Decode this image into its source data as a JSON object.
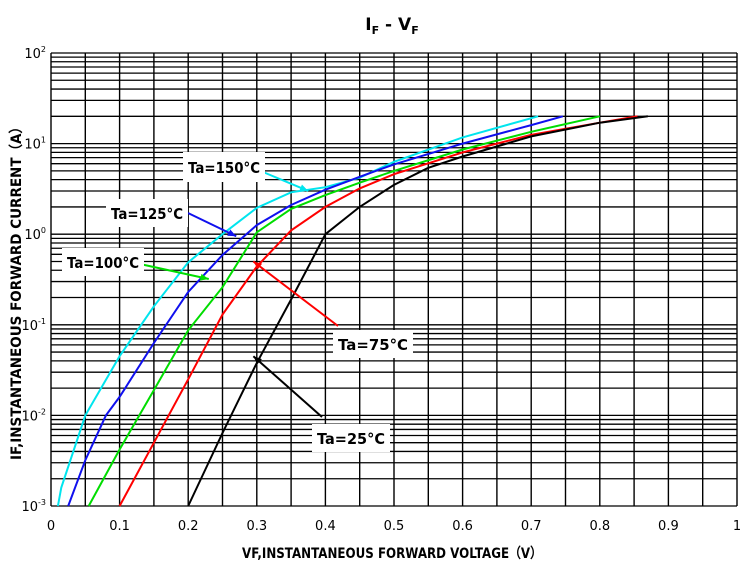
{
  "chart_data": {
    "type": "line",
    "title": {
      "main_i": "I",
      "sub_i": "F",
      "dash": " - ",
      "main_v": "V",
      "sub_v": "F"
    },
    "xlabel": "VF,INSTANTANEOUS FORWARD VOLTAGE（V）",
    "ylabel": "IF,INSTANTANEOUS FORWARD CURRENT（A）",
    "xlim": [
      0,
      1
    ],
    "ylim": [
      0.001,
      100
    ],
    "yscale": "log",
    "grid": true,
    "x_ticks": [
      "0",
      "0.1",
      "0.2",
      "0.3",
      "0.4",
      "0.5",
      "0.6",
      "0.7",
      "0.8",
      "0.9",
      "1"
    ],
    "y_ticks": [
      {
        "base": "10",
        "exp": "-3"
      },
      {
        "base": "10",
        "exp": "-2"
      },
      {
        "base": "10",
        "exp": "-1"
      },
      {
        "base": "10",
        "exp": "0"
      },
      {
        "base": "10",
        "exp": "1"
      },
      {
        "base": "10",
        "exp": "2"
      }
    ],
    "series": [
      {
        "name": "Ta=150°C",
        "color": "#00e5ee",
        "x": [
          0.01,
          0.015,
          0.05,
          0.1,
          0.15,
          0.2,
          0.25,
          0.3,
          0.35,
          0.4,
          0.45,
          0.5,
          0.6,
          0.71
        ],
        "y": [
          0.001,
          0.0016,
          0.01,
          0.045,
          0.16,
          0.49,
          1.0,
          1.95,
          2.9,
          3.3,
          4.2,
          6.3,
          11.7,
          20
        ]
      },
      {
        "name": "Ta=125°C",
        "color": "#1010ee",
        "x": [
          0.025,
          0.05,
          0.08,
          0.1,
          0.15,
          0.2,
          0.25,
          0.3,
          0.35,
          0.4,
          0.45,
          0.5,
          0.6,
          0.7,
          0.746
        ],
        "y": [
          0.001,
          0.0032,
          0.01,
          0.016,
          0.063,
          0.23,
          0.59,
          1.26,
          2.1,
          3.1,
          4.3,
          5.9,
          10,
          16,
          20
        ]
      },
      {
        "name": "Ta=100°C",
        "color": "#00dd00",
        "x": [
          0.055,
          0.1,
          0.15,
          0.2,
          0.25,
          0.3,
          0.35,
          0.4,
          0.45,
          0.5,
          0.6,
          0.7,
          0.8
        ],
        "y": [
          0.001,
          0.0042,
          0.019,
          0.087,
          0.26,
          1.05,
          1.9,
          2.7,
          3.7,
          5.0,
          8.6,
          13.5,
          20
        ]
      },
      {
        "name": "Ta=75°C",
        "color": "#ff0000",
        "x": [
          0.1,
          0.15,
          0.2,
          0.25,
          0.3,
          0.35,
          0.4,
          0.45,
          0.5,
          0.6,
          0.7,
          0.8,
          0.855
        ],
        "y": [
          0.001,
          0.005,
          0.025,
          0.13,
          0.44,
          1.1,
          2.0,
          3.2,
          4.6,
          8.0,
          12.5,
          17,
          20
        ]
      },
      {
        "name": "Ta=25°C",
        "color": "#000000",
        "x": [
          0.2,
          0.25,
          0.3,
          0.35,
          0.4,
          0.45,
          0.5,
          0.55,
          0.6,
          0.7,
          0.8,
          0.87
        ],
        "y": [
          0.001,
          0.0064,
          0.038,
          0.19,
          1.0,
          2.0,
          3.5,
          5.4,
          7.2,
          12,
          17,
          20
        ]
      }
    ],
    "annotations": [
      {
        "label": "Ta=150°C",
        "series": 0,
        "arrow_to": [
          0.375,
          3.0
        ]
      },
      {
        "label": "Ta=125°C",
        "series": 1,
        "arrow_to": [
          0.27,
          0.95
        ]
      },
      {
        "label": "Ta=100°C",
        "series": 2,
        "arrow_to": [
          0.23,
          0.32
        ]
      },
      {
        "label": "Ta=75°C",
        "series": 3,
        "arrow_to": [
          0.295,
          0.5
        ]
      },
      {
        "label": "Ta=25°C",
        "series": 4,
        "arrow_to": [
          0.295,
          0.045
        ]
      }
    ]
  }
}
